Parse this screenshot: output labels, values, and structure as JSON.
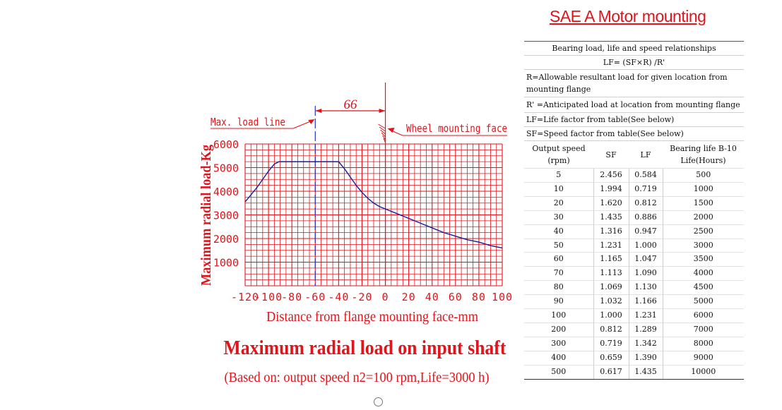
{
  "chart_data": {
    "type": "line",
    "title": "Maximum radial load on input shaft",
    "subtitle": "(Based on: output speed n2=100 rpm,Life=3000 h)",
    "xlabel": "Distance from flange mounting face-mm",
    "ylabel": "Maximum radial load-Kg",
    "xlim": [
      -120,
      100
    ],
    "ylim": [
      0,
      6000
    ],
    "x_ticks": [
      "-120",
      "-100",
      "-80",
      "-60",
      "-40",
      "-20",
      "0",
      "20",
      "40",
      "60",
      "80",
      "100"
    ],
    "y_ticks": [
      "1000",
      "2000",
      "3000",
      "4000",
      "5000",
      "6000"
    ],
    "grid": true,
    "series": [
      {
        "x": [
          -120,
          -115,
          -110,
          -105,
          -100,
          -95,
          -91,
          -40,
          -35,
          -30,
          -25,
          -20,
          -15,
          -10,
          -5,
          0,
          10,
          20,
          30,
          40,
          50,
          60,
          70,
          80,
          90,
          100
        ],
        "y": [
          3550,
          3850,
          4150,
          4500,
          4850,
          5150,
          5250,
          5250,
          4950,
          4600,
          4250,
          3950,
          3700,
          3500,
          3350,
          3250,
          3050,
          2850,
          2650,
          2450,
          2250,
          2100,
          1950,
          1850,
          1700,
          1600
        ],
        "color": "#1a1a9c"
      }
    ],
    "annotations": {
      "max_load_label": "Max. load line",
      "max_load_x": -60,
      "wheel_face_label": "Wheel mounting face",
      "wheel_face_x": 0,
      "dimension_label": "66"
    }
  },
  "table": {
    "title": "SAE A Motor mounting",
    "heading": "Bearing load, life and speed relationships",
    "formula": "LF= (SF×R) /R'",
    "notes": [
      "R=Allowable resultant load for given location from mounting flange",
      "R' =Anticipated load at location from mounting flange",
      "LF=Life factor from table(See below)",
      "SF=Speed factor from table(See below)"
    ],
    "columns": [
      "Output speed (rpm)",
      "SF",
      "LF",
      "Bearing life B-10 Life(Hours)"
    ],
    "rows": [
      [
        "5",
        "2.456",
        "0.584",
        "500"
      ],
      [
        "10",
        "1.994",
        "0.719",
        "1000"
      ],
      [
        "20",
        "1.620",
        "0.812",
        "1500"
      ],
      [
        "30",
        "1.435",
        "0.886",
        "2000"
      ],
      [
        "40",
        "1.316",
        "0.947",
        "2500"
      ],
      [
        "50",
        "1.231",
        "1.000",
        "3000"
      ],
      [
        "60",
        "1.165",
        "1.047",
        "3500"
      ],
      [
        "70",
        "1.113",
        "1.090",
        "4000"
      ],
      [
        "80",
        "1.069",
        "1.130",
        "4500"
      ],
      [
        "90",
        "1.032",
        "1.166",
        "5000"
      ],
      [
        "100",
        "1.000",
        "1.231",
        "6000"
      ],
      [
        "200",
        "0.812",
        "1.289",
        "7000"
      ],
      [
        "300",
        "0.719",
        "1.342",
        "8000"
      ],
      [
        "400",
        "0.659",
        "1.390",
        "9000"
      ],
      [
        "500",
        "0.617",
        "1.435",
        "10000"
      ]
    ]
  },
  "colors": {
    "grid": "#e0141b",
    "curve": "#1a1a9c",
    "text_red": "#e0141b"
  }
}
